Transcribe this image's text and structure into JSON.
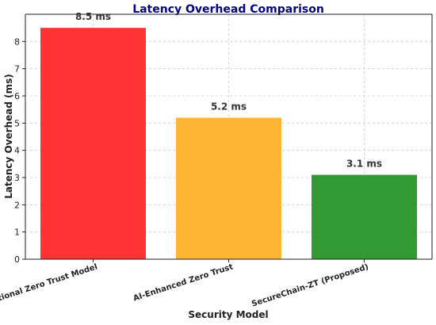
{
  "chart_data": {
    "type": "bar",
    "title": "Latency Overhead Comparison",
    "xlabel": "Security Model",
    "ylabel": "Latency Overhead (ms)",
    "categories": [
      "Traditional Zero Trust Model",
      "AI-Enhanced Zero Trust",
      "SecureChain-ZT (Proposed)"
    ],
    "values": [
      8.5,
      5.2,
      3.1
    ],
    "data_labels": [
      "8.5 ms",
      "5.2 ms",
      "3.1 ms"
    ],
    "bar_colors": [
      "#ff3333",
      "#ffb533",
      "#339933"
    ],
    "title_color": "#000080",
    "ylim": [
      0,
      9.0
    ],
    "yticks": [
      0,
      1,
      2,
      3,
      4,
      5,
      6,
      7,
      8
    ],
    "grid": true,
    "legend": "none"
  }
}
